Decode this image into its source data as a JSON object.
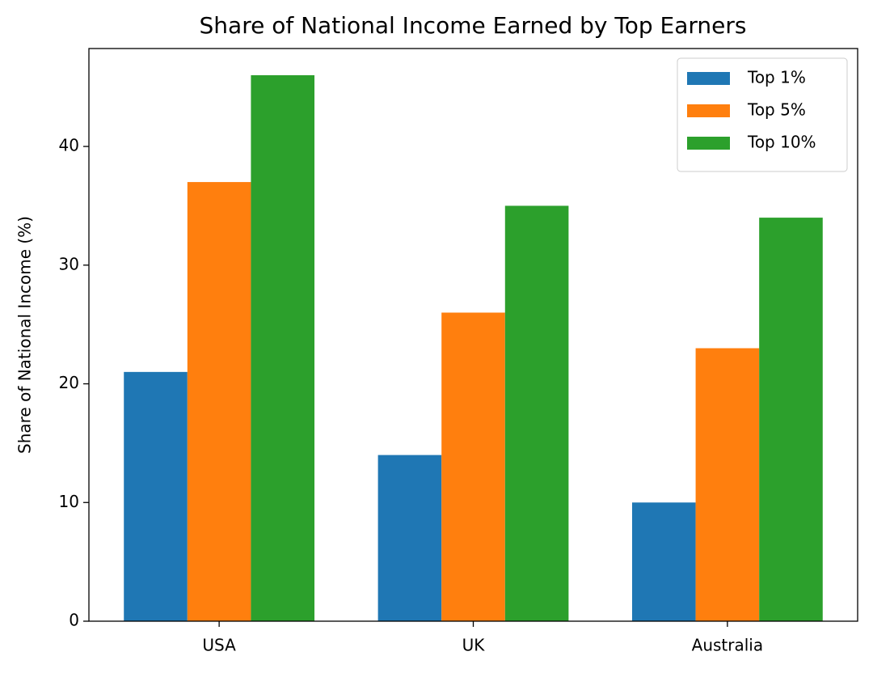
{
  "chart_data": {
    "type": "bar",
    "title": "Share of National Income Earned by Top Earners",
    "y_label": "Share of National Income (%)",
    "categories": [
      "USA",
      "UK",
      "Australia"
    ],
    "series": [
      {
        "name": "Top 1%",
        "color": "#1f77b4",
        "values": [
          21,
          14,
          10
        ]
      },
      {
        "name": "Top 5%",
        "color": "#ff7f0e",
        "values": [
          37,
          26,
          23
        ]
      },
      {
        "name": "Top 10%",
        "color": "#2ca02c",
        "values": [
          46,
          35,
          34
        ]
      }
    ],
    "ylim": [
      0,
      48.25
    ],
    "yticks": [
      0,
      10,
      20,
      30,
      40
    ],
    "grid": false,
    "legend": "upper right"
  }
}
